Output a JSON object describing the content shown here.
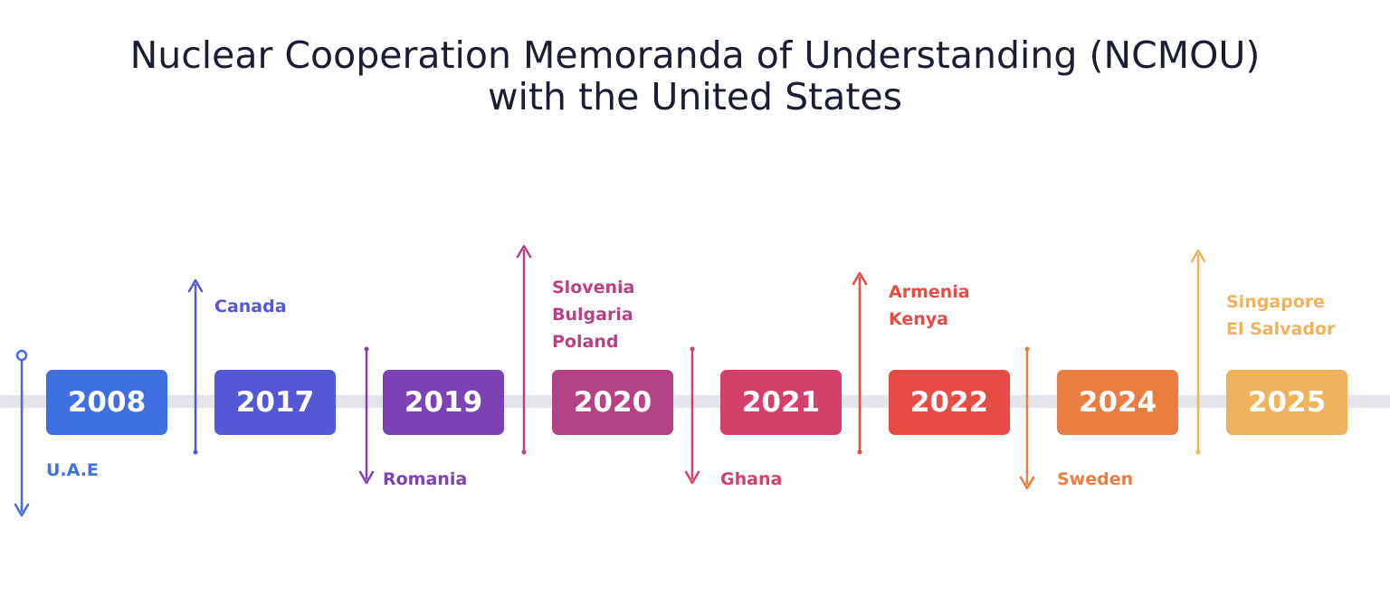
{
  "title": {
    "line1": "Nuclear Cooperation Memoranda of Understanding (NCMOU)",
    "line2": "with the United States"
  },
  "events": [
    {
      "year": "2008",
      "countries": [
        "U.A.E"
      ],
      "color": "#3f6fe0",
      "direction": "down"
    },
    {
      "year": "2017",
      "countries": [
        "Canada"
      ],
      "color": "#5358d4",
      "direction": "up"
    },
    {
      "year": "2019",
      "countries": [
        "Romania"
      ],
      "color": "#7d42b4",
      "direction": "down"
    },
    {
      "year": "2020",
      "countries": [
        "Slovenia",
        "Bulgaria",
        "Poland"
      ],
      "color": "#b54284",
      "direction": "up"
    },
    {
      "year": "2021",
      "countries": [
        "Ghana"
      ],
      "color": "#d4406a",
      "direction": "down"
    },
    {
      "year": "2022",
      "countries": [
        "Armenia",
        "Kenya"
      ],
      "color": "#e64c44",
      "direction": "up"
    },
    {
      "year": "2024",
      "countries": [
        "Sweden"
      ],
      "color": "#ea7d41",
      "direction": "down"
    },
    {
      "year": "2025",
      "countries": [
        "Singapore",
        "El Salvador"
      ],
      "color": "#f0b25a",
      "direction": "up"
    }
  ]
}
